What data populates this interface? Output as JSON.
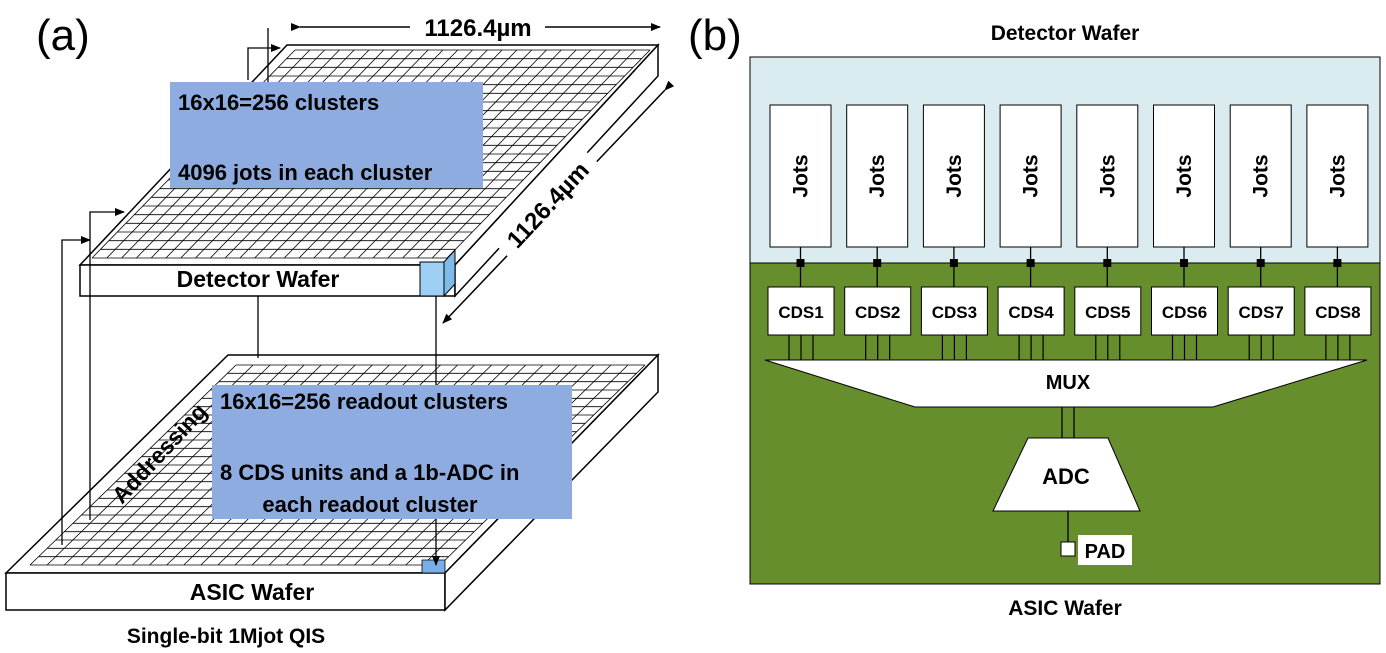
{
  "panel_a": {
    "letter": "(a)",
    "width_dim": "1126.4µm",
    "depth_dim": "1126.4µm",
    "detector_box": {
      "line1": "16x16=256 clusters",
      "line2": "4096 jots in each cluster"
    },
    "detector_wafer": "Detector Wafer",
    "asic_box": {
      "line1": "16x16=256 readout clusters",
      "line2": "8 CDS units and a 1b-ADC in",
      "line3": "each readout cluster"
    },
    "addressing": "Addressing",
    "asic_wafer": "ASIC Wafer",
    "caption": "Single-bit 1Mjot QIS"
  },
  "panel_b": {
    "letter": "(b)",
    "detector_title": "Detector Wafer",
    "jots": [
      "Jots",
      "Jots",
      "Jots",
      "Jots",
      "Jots",
      "Jots",
      "Jots",
      "Jots"
    ],
    "cds": [
      "CDS1",
      "CDS2",
      "CDS3",
      "CDS4",
      "CDS5",
      "CDS6",
      "CDS7",
      "CDS8"
    ],
    "mux": "MUX",
    "adc": "ADC",
    "pad": "PAD",
    "asic_title": "ASIC Wafer"
  },
  "colors": {
    "detector_bg": "#dbecf1",
    "asic_bg": "#678e2d",
    "label_box": "#8eacdf",
    "cube_blue": "#9dd0f4"
  }
}
